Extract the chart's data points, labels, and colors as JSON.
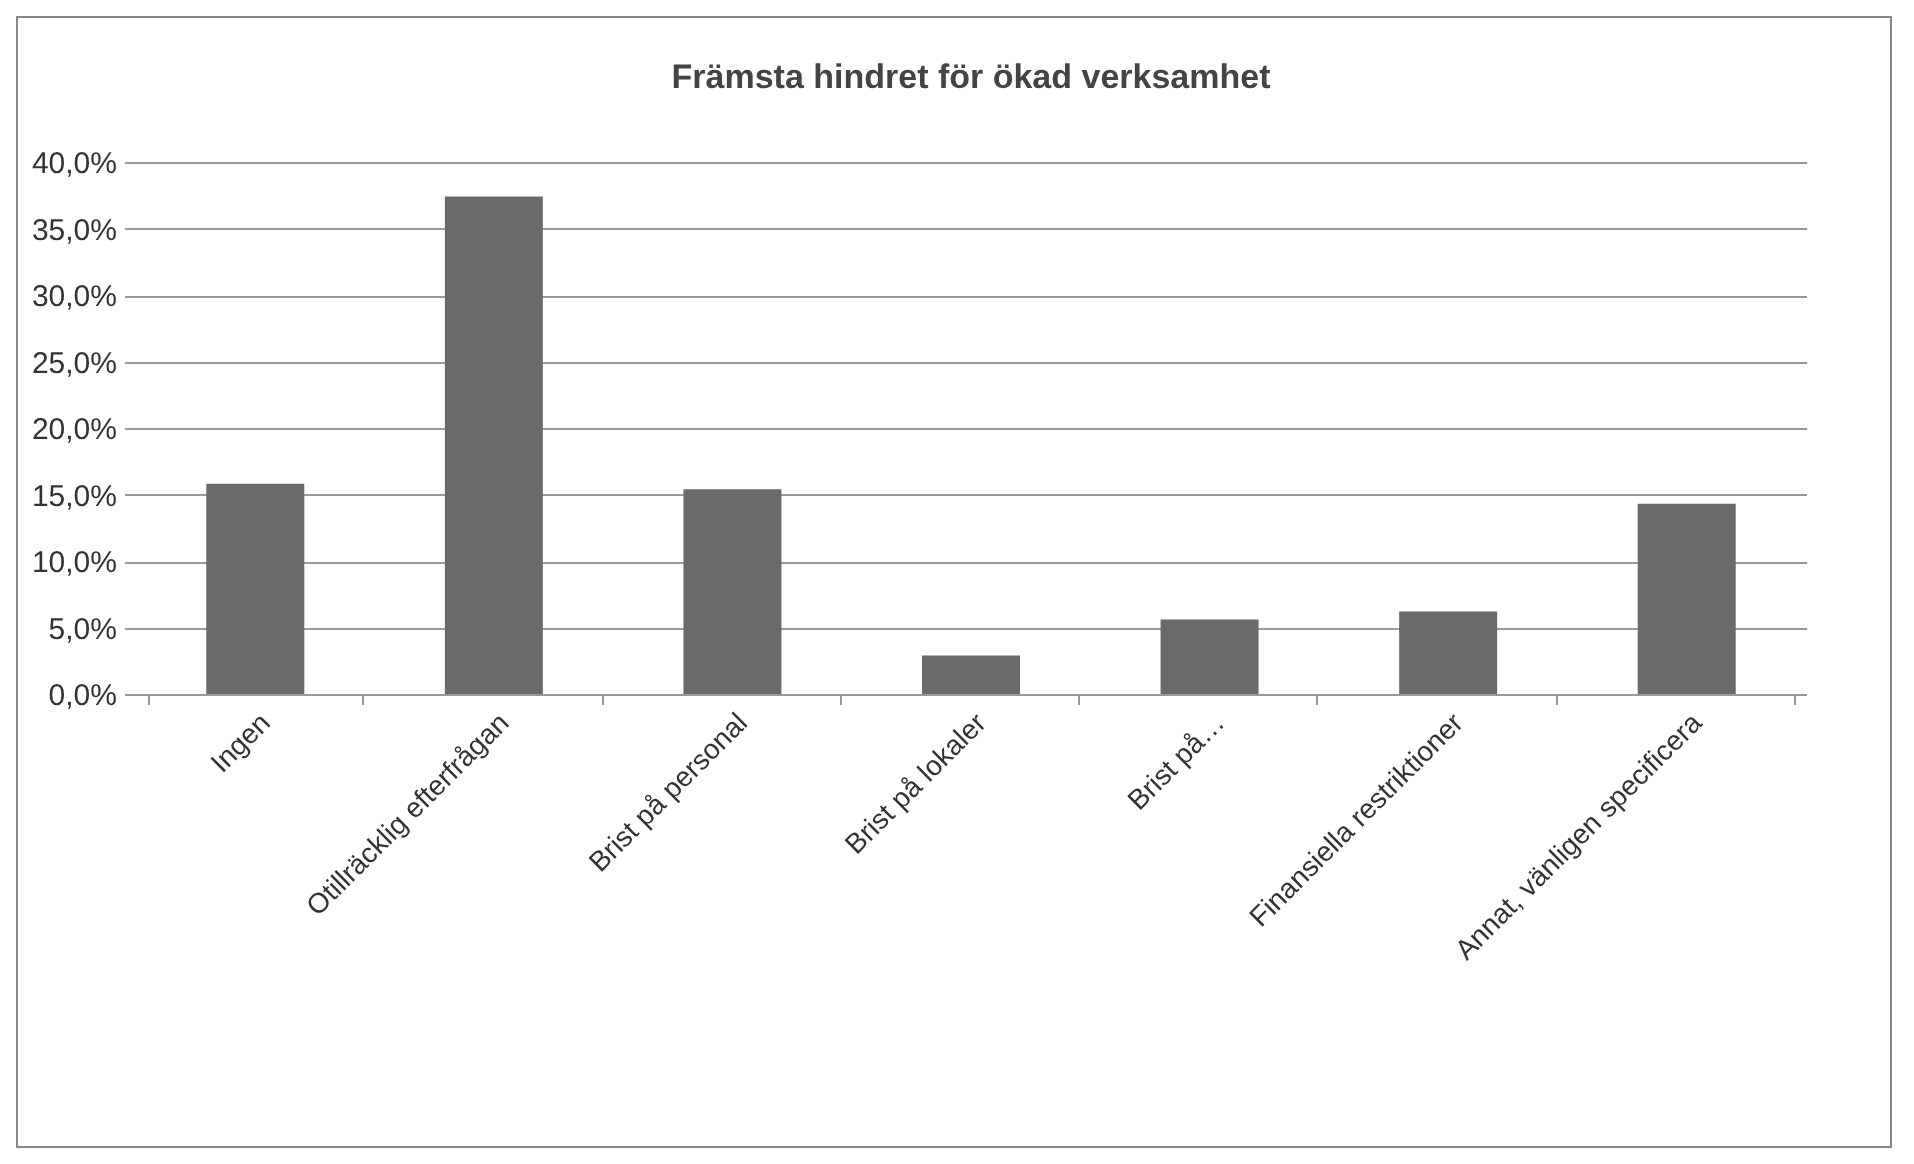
{
  "chart_data": {
    "type": "bar",
    "title": "Främsta hindret för ökad verksamhet",
    "categories": [
      "Ingen",
      "Otillräcklig efterfrågan",
      "Brist på personal",
      "Brist på lokaler",
      "Brist på…",
      "Finansiella restriktioner",
      "Annat, vänligen specificera"
    ],
    "values": [
      15.8,
      37.4,
      15.4,
      2.9,
      5.6,
      6.2,
      14.3
    ],
    "color": "#6a6a6a",
    "ylim": [
      0,
      40
    ],
    "yticks": [
      {
        "value": 0,
        "label": "0,0%"
      },
      {
        "value": 5,
        "label": "5,0%"
      },
      {
        "value": 10,
        "label": "10,0%"
      },
      {
        "value": 15,
        "label": "15,0%"
      },
      {
        "value": 20,
        "label": "20,0%"
      },
      {
        "value": 25,
        "label": "25,0%"
      },
      {
        "value": 30,
        "label": "30,0%"
      },
      {
        "value": 35,
        "label": "35,0%"
      },
      {
        "value": 40,
        "label": "40,0%"
      }
    ],
    "grid": "y"
  }
}
